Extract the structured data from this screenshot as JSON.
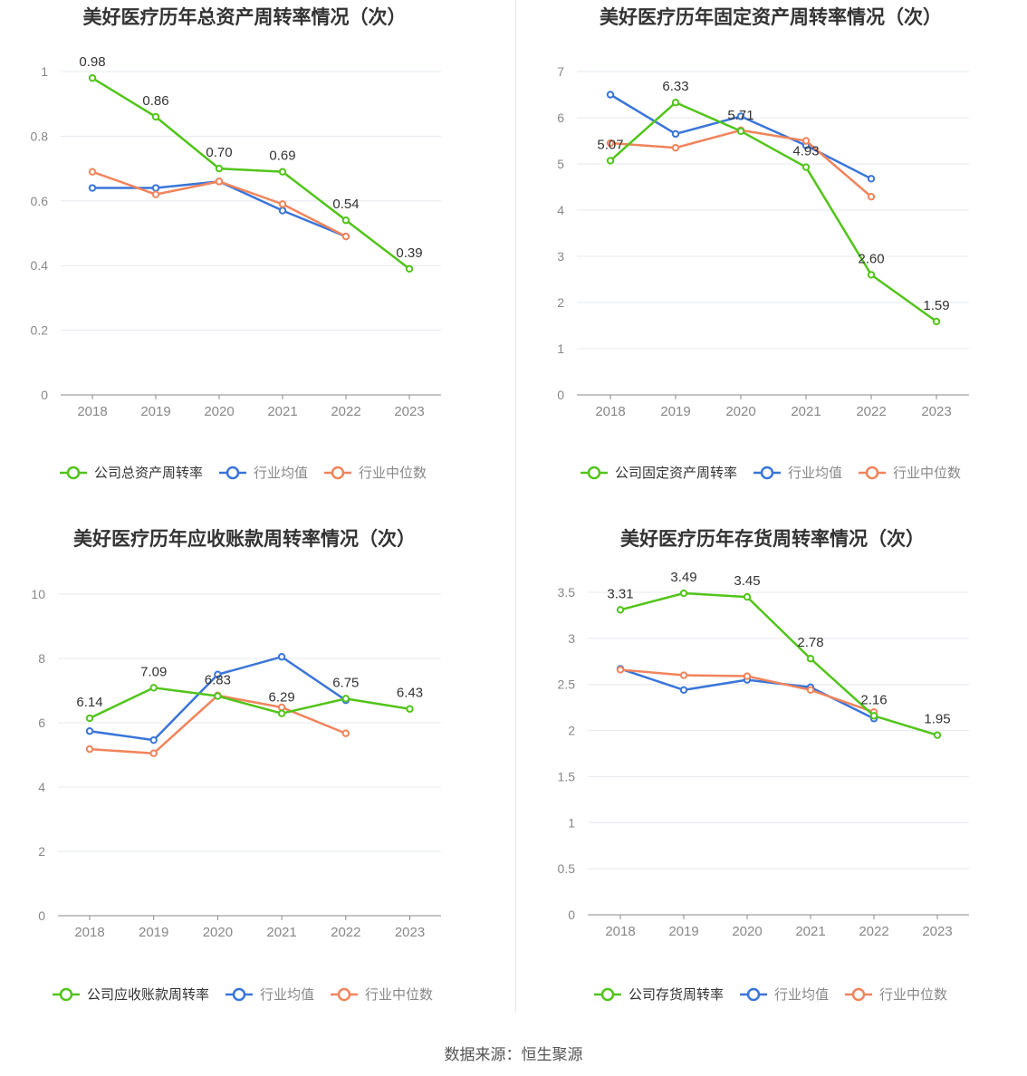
{
  "source_label": "数据来源：恒生聚源",
  "colors": {
    "company": "#52c41a",
    "avg": "#3a75d8",
    "median": "#f0845c",
    "grid": "#e6e8f0",
    "axis": "#888888",
    "tick": "#888888",
    "title": "#333333"
  },
  "chart_data": [
    {
      "type": "line",
      "title": "美好医疗历年总资产周转率情况（次）",
      "categories": [
        "2018",
        "2019",
        "2020",
        "2021",
        "2022",
        "2023"
      ],
      "yticks": [
        "0",
        "0.2",
        "0.4",
        "0.6",
        "0.8",
        "1"
      ],
      "ylim": [
        0,
        1
      ],
      "grid": true,
      "legend": "bottom",
      "series": [
        {
          "name": "公司总资产周转率",
          "role": "company",
          "values": [
            0.98,
            0.86,
            0.7,
            0.69,
            0.54,
            0.39
          ],
          "labels": [
            "0.98",
            "0.86",
            "0.70",
            "0.69",
            "0.54",
            "0.39"
          ]
        },
        {
          "name": "行业均值",
          "role": "avg",
          "values": [
            0.64,
            0.64,
            0.66,
            0.57,
            0.49,
            null
          ]
        },
        {
          "name": "行业中位数",
          "role": "median",
          "values": [
            0.69,
            0.62,
            0.66,
            0.59,
            0.49,
            null
          ]
        }
      ]
    },
    {
      "type": "line",
      "title": "美好医疗历年固定资产周转率情况（次）",
      "categories": [
        "2018",
        "2019",
        "2020",
        "2021",
        "2022",
        "2023"
      ],
      "yticks": [
        "0",
        "1",
        "2",
        "3",
        "4",
        "5",
        "6",
        "7"
      ],
      "ylim": [
        0,
        7
      ],
      "grid": true,
      "legend": "bottom",
      "series": [
        {
          "name": "公司固定资产周转率",
          "role": "company",
          "values": [
            5.07,
            6.33,
            5.71,
            4.93,
            2.6,
            1.59
          ],
          "labels": [
            "5.07",
            "6.33",
            "5.71",
            "4.93",
            "2.60",
            "1.59"
          ]
        },
        {
          "name": "行业均值",
          "role": "avg",
          "values": [
            6.5,
            5.65,
            6.03,
            5.4,
            4.68,
            null
          ]
        },
        {
          "name": "行业中位数",
          "role": "median",
          "values": [
            5.45,
            5.35,
            5.73,
            5.5,
            4.29,
            null
          ]
        }
      ]
    },
    {
      "type": "line",
      "title": "美好医疗历年应收账款周转率情况（次）",
      "categories": [
        "2018",
        "2019",
        "2020",
        "2021",
        "2022",
        "2023"
      ],
      "yticks": [
        "0",
        "2",
        "4",
        "6",
        "8",
        "10"
      ],
      "ylim": [
        0,
        10
      ],
      "grid": true,
      "legend": "bottom",
      "series": [
        {
          "name": "公司应收账款周转率",
          "role": "company",
          "values": [
            6.14,
            7.09,
            6.83,
            6.29,
            6.75,
            6.43
          ],
          "labels": [
            "6.14",
            "7.09",
            "6.83",
            "6.29",
            "6.75",
            "6.43"
          ]
        },
        {
          "name": "行业均值",
          "role": "avg",
          "values": [
            5.74,
            5.46,
            7.5,
            8.05,
            6.7,
            null
          ]
        },
        {
          "name": "行业中位数",
          "role": "median",
          "values": [
            5.18,
            5.05,
            6.85,
            6.48,
            5.67,
            null
          ]
        }
      ]
    },
    {
      "type": "line",
      "title": "美好医疗历年存货周转率情况（次）",
      "categories": [
        "2018",
        "2019",
        "2020",
        "2021",
        "2022",
        "2023"
      ],
      "yticks": [
        "0",
        "0.5",
        "1",
        "1.5",
        "2",
        "2.5",
        "3",
        "3.5"
      ],
      "ylim": [
        0,
        3.5
      ],
      "grid": true,
      "legend": "bottom",
      "series": [
        {
          "name": "公司存货周转率",
          "role": "company",
          "values": [
            3.31,
            3.49,
            3.45,
            2.78,
            2.16,
            1.95
          ],
          "labels": [
            "3.31",
            "3.49",
            "3.45",
            "2.78",
            "2.16",
            "1.95"
          ]
        },
        {
          "name": "行业均值",
          "role": "avg",
          "values": [
            2.67,
            2.44,
            2.55,
            2.47,
            2.13,
            null
          ]
        },
        {
          "name": "行业中位数",
          "role": "median",
          "values": [
            2.66,
            2.6,
            2.59,
            2.44,
            2.2,
            null
          ]
        }
      ]
    }
  ]
}
